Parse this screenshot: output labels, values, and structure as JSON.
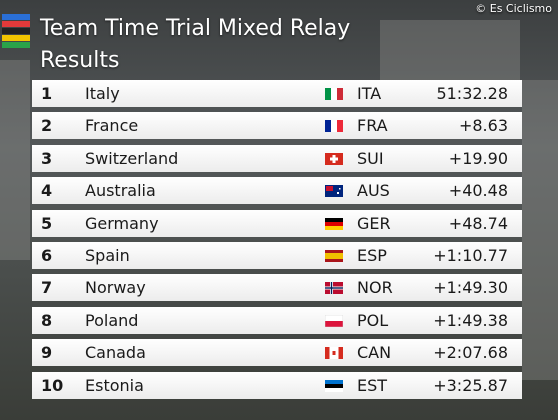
{
  "header": {
    "title": "Team Time Trial Mixed Relay",
    "subtitle": "Results",
    "watermark": "© Es Ciclismo"
  },
  "table": {
    "rows": [
      [
        "1",
        "Italy",
        "ITA",
        "51:32.28"
      ],
      [
        "2",
        "France",
        "FRA",
        "+8.63"
      ],
      [
        "3",
        "Switzerland",
        "SUI",
        "+19.90"
      ],
      [
        "4",
        "Australia",
        "AUS",
        "+40.48"
      ],
      [
        "5",
        "Germany",
        "GER",
        "+48.74"
      ],
      [
        "6",
        "Spain",
        "ESP",
        "+1:10.77"
      ],
      [
        "7",
        "Norway",
        "NOR",
        "+1:49.30"
      ],
      [
        "8",
        "Poland",
        "POL",
        "+1:49.38"
      ],
      [
        "9",
        "Canada",
        "CAN",
        "+2:07.68"
      ],
      [
        "10",
        "Estonia",
        "EST",
        "+3:25.87"
      ]
    ]
  }
}
